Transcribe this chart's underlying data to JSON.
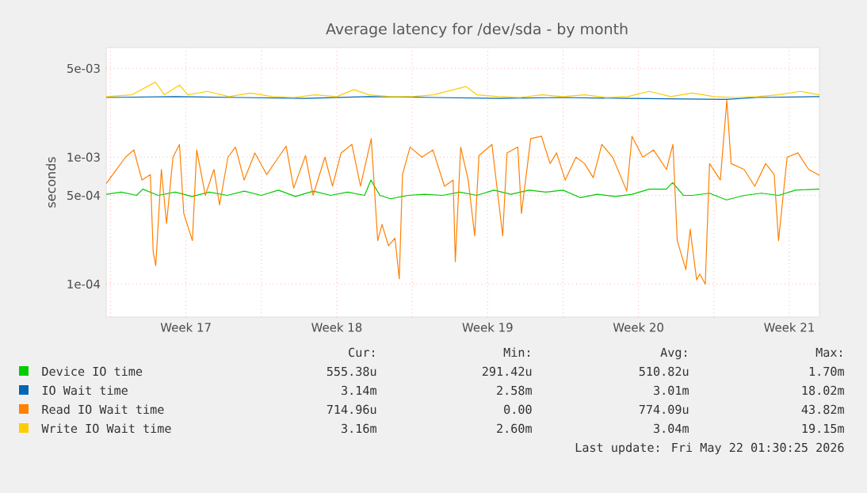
{
  "chart_data": {
    "type": "line",
    "title": "Average latency for /dev/sda - by month",
    "ylabel": "seconds",
    "log": true,
    "grid": true,
    "legend": "bottom",
    "xlim": [
      "2026-04-19T19:12",
      "2026-05-22T21:36"
    ],
    "ylim": [
      5.5e-05,
      0.0073
    ],
    "xticks": [
      {
        "value": "2026-04-20T00:00",
        "label": null
      },
      {
        "value": "2026-04-23T12:00",
        "label": "Week 17"
      },
      {
        "value": "2026-04-27T00:00",
        "label": null
      },
      {
        "value": "2026-04-30T12:00",
        "label": "Week 18"
      },
      {
        "value": "2026-05-04T00:00",
        "label": null
      },
      {
        "value": "2026-05-07T12:00",
        "label": "Week 19"
      },
      {
        "value": "2026-05-11T00:00",
        "label": null
      },
      {
        "value": "2026-05-14T12:00",
        "label": "Week 20"
      },
      {
        "value": "2026-05-18T00:00",
        "label": null
      },
      {
        "value": "2026-05-21T12:00",
        "label": "Week 21"
      }
    ],
    "yticks": [
      {
        "value": 0.0001,
        "label": "1e-04"
      },
      {
        "value": 0.0005,
        "label": "5e-04"
      },
      {
        "value": 0.001,
        "label": "1e-03"
      },
      {
        "value": 0.005,
        "label": "5e-03"
      }
    ],
    "series": [
      {
        "name": "Device IO time",
        "color": "#00cc00",
        "x": [
          "2026-04-19T19:12",
          "2026-04-20T12:00",
          "2026-04-21T05:00",
          "2026-04-21T12:00",
          "2026-04-22T05:00",
          "2026-04-23T00:00",
          "2026-04-23T19:00",
          "2026-04-24T14:00",
          "2026-04-25T10:00",
          "2026-04-26T05:00",
          "2026-04-27T00:00",
          "2026-04-27T19:00",
          "2026-04-28T14:00",
          "2026-04-29T10:00",
          "2026-04-30T05:00",
          "2026-05-01T00:00",
          "2026-05-01T19:00",
          "2026-05-02T02:00",
          "2026-05-02T12:00",
          "2026-05-03T00:00",
          "2026-05-03T19:00",
          "2026-05-04T14:00",
          "2026-05-05T10:00",
          "2026-05-06T05:00",
          "2026-05-07T00:00",
          "2026-05-07T19:00",
          "2026-05-08T14:00",
          "2026-05-09T10:00",
          "2026-05-10T05:00",
          "2026-05-11T00:00",
          "2026-05-11T19:00",
          "2026-05-12T14:00",
          "2026-05-13T10:00",
          "2026-05-14T05:00",
          "2026-05-15T00:00",
          "2026-05-15T19:00",
          "2026-05-16T02:00",
          "2026-05-16T14:00",
          "2026-05-17T00:00",
          "2026-05-17T19:00",
          "2026-05-18T14:00",
          "2026-05-19T10:00",
          "2026-05-20T05:00",
          "2026-05-21T00:00",
          "2026-05-21T19:00",
          "2026-05-22T21:36"
        ],
        "values": [
          0.00051,
          0.00053,
          0.0005,
          0.00056,
          0.0005,
          0.00053,
          0.00049,
          0.00053,
          0.0005,
          0.00054,
          0.0005,
          0.00055,
          0.00049,
          0.00054,
          0.0005,
          0.00053,
          0.0005,
          0.00066,
          0.0005,
          0.00047,
          0.0005,
          0.00051,
          0.0005,
          0.00053,
          0.0005,
          0.00055,
          0.00051,
          0.00055,
          0.00053,
          0.00055,
          0.00048,
          0.00051,
          0.00049,
          0.00051,
          0.00056,
          0.00056,
          0.00063,
          0.0005,
          0.0005,
          0.00052,
          0.00046,
          0.0005,
          0.00052,
          0.0005,
          0.00055,
          0.00056
        ]
      },
      {
        "name": "IO Wait time",
        "color": "#0066b3",
        "x": [
          "2026-04-19T19:12",
          "2026-04-23T00:00",
          "2026-04-26T00:00",
          "2026-04-29T00:00",
          "2026-05-02T00:00",
          "2026-05-05T00:00",
          "2026-05-08T00:00",
          "2026-05-11T00:00",
          "2026-05-14T00:00",
          "2026-05-18T14:00",
          "2026-05-20T00:00",
          "2026-05-22T21:36"
        ],
        "values": [
          0.00295,
          0.003,
          0.00295,
          0.0029,
          0.003,
          0.00295,
          0.0029,
          0.00295,
          0.0029,
          0.00285,
          0.00295,
          0.003
        ]
      },
      {
        "name": "Read IO Wait time",
        "color": "#ff8000",
        "x": [
          "2026-04-19T19:12",
          "2026-04-20T04:19",
          "2026-04-20T16:48",
          "2026-04-21T01:55",
          "2026-04-21T11:02",
          "2026-04-21T20:24",
          "2026-04-21T23:31",
          "2026-04-22T02:24",
          "2026-04-22T08:38",
          "2026-04-22T14:24",
          "2026-04-22T21:36",
          "2026-04-23T04:48",
          "2026-04-23T09:36",
          "2026-04-23T19:12",
          "2026-04-24T00:00",
          "2026-04-24T09:36",
          "2026-04-24T19:12",
          "2026-04-25T01:26",
          "2026-04-25T10:48",
          "2026-04-25T19:12",
          "2026-04-26T04:48",
          "2026-04-26T16:48",
          "2026-04-27T06:00",
          "2026-04-27T19:12",
          "2026-04-28T03:36",
          "2026-04-28T12:00",
          "2026-04-29T01:12",
          "2026-04-29T09:36",
          "2026-04-29T22:48",
          "2026-04-30T07:12",
          "2026-04-30T16:48",
          "2026-05-01T04:48",
          "2026-05-01T14:24",
          "2026-05-02T02:24",
          "2026-05-02T09:36",
          "2026-05-02T14:24",
          "2026-05-02T21:36",
          "2026-05-03T04:48",
          "2026-05-03T09:36",
          "2026-05-03T13:12",
          "2026-05-03T21:36",
          "2026-05-04T10:48",
          "2026-05-04T23:02",
          "2026-05-05T12:00",
          "2026-05-05T21:36",
          "2026-05-06T00:00",
          "2026-05-06T06:00",
          "2026-05-06T14:24",
          "2026-05-06T21:36",
          "2026-05-07T02:24",
          "2026-05-07T16:48",
          "2026-05-08T04:48",
          "2026-05-08T09:36",
          "2026-05-08T21:36",
          "2026-05-09T01:41",
          "2026-05-09T12:00",
          "2026-05-10T00:00",
          "2026-05-10T09:36",
          "2026-05-10T16:48",
          "2026-05-11T02:24",
          "2026-05-11T14:24",
          "2026-05-12T00:00",
          "2026-05-12T09:36",
          "2026-05-12T19:12",
          "2026-05-13T07:12",
          "2026-05-13T23:02",
          "2026-05-14T04:48",
          "2026-05-14T16:48",
          "2026-05-15T04:48",
          "2026-05-15T19:12",
          "2026-05-16T02:24",
          "2026-05-16T07:12",
          "2026-05-16T16:48",
          "2026-05-16T21:36",
          "2026-05-17T04:48",
          "2026-05-17T08:24",
          "2026-05-17T14:24",
          "2026-05-17T19:12",
          "2026-05-18T07:12",
          "2026-05-18T14:24",
          "2026-05-18T19:12",
          "2026-05-19T09:36",
          "2026-05-19T21:36",
          "2026-05-20T09:36",
          "2026-05-20T19:12",
          "2026-05-21T00:00",
          "2026-05-21T09:36",
          "2026-05-21T21:36",
          "2026-05-22T09:36",
          "2026-05-22T21:36"
        ],
        "values": [
          0.00062,
          0.00076,
          0.001,
          0.00114,
          0.00066,
          0.00073,
          0.00018,
          0.00014,
          0.0008,
          0.0003,
          0.001,
          0.00126,
          0.00036,
          0.00022,
          0.00114,
          0.0005,
          0.0008,
          0.00042,
          0.001,
          0.0012,
          0.00066,
          0.00108,
          0.00073,
          0.001,
          0.00122,
          0.00057,
          0.00103,
          0.0005,
          0.001,
          0.00059,
          0.00108,
          0.00126,
          0.00059,
          0.0014,
          0.00022,
          0.000295,
          0.0002,
          0.00023,
          0.00011,
          0.00073,
          0.0012,
          0.001,
          0.00114,
          0.00059,
          0.00066,
          0.00015,
          0.0012,
          0.00066,
          0.00024,
          0.00103,
          0.00126,
          0.00024,
          0.00108,
          0.0012,
          0.00036,
          0.0014,
          0.00146,
          0.00089,
          0.00108,
          0.00066,
          0.001,
          0.00089,
          0.00069,
          0.00126,
          0.001,
          0.00054,
          0.00146,
          0.001,
          0.00114,
          0.0008,
          0.00126,
          0.00022,
          0.00013,
          0.00027,
          0.000108,
          0.00012,
          0.0001,
          0.00089,
          0.00066,
          0.0028,
          0.00089,
          0.0008,
          0.00059,
          0.00089,
          0.00073,
          0.00022,
          0.001,
          0.00108,
          0.0008,
          0.00072
        ]
      },
      {
        "name": "Write IO Wait time",
        "color": "#ffcc00",
        "x": [
          "2026-04-19T19:12",
          "2026-04-21T00:00",
          "2026-04-22T02:00",
          "2026-04-22T12:00",
          "2026-04-23T05:00",
          "2026-04-23T14:00",
          "2026-04-24T12:00",
          "2026-04-25T12:00",
          "2026-04-26T12:00",
          "2026-04-27T12:00",
          "2026-04-28T12:00",
          "2026-04-29T12:00",
          "2026-04-30T12:00",
          "2026-05-01T07:00",
          "2026-05-02T00:00",
          "2026-05-03T00:00",
          "2026-05-04T00:00",
          "2026-05-05T00:00",
          "2026-05-06T12:00",
          "2026-05-07T00:00",
          "2026-05-08T00:00",
          "2026-05-09T00:00",
          "2026-05-10T00:00",
          "2026-05-11T00:00",
          "2026-05-12T00:00",
          "2026-05-13T00:00",
          "2026-05-14T00:00",
          "2026-05-15T00:00",
          "2026-05-16T00:00",
          "2026-05-17T00:00",
          "2026-05-18T00:00",
          "2026-05-19T00:00",
          "2026-05-20T00:00",
          "2026-05-21T00:00",
          "2026-05-22T00:00",
          "2026-05-22T21:36"
        ],
        "values": [
          0.003,
          0.0031,
          0.0039,
          0.0031,
          0.0037,
          0.0031,
          0.0033,
          0.003,
          0.0032,
          0.003,
          0.00295,
          0.0031,
          0.003,
          0.0034,
          0.0031,
          0.003,
          0.003,
          0.0031,
          0.0036,
          0.0031,
          0.003,
          0.00295,
          0.0031,
          0.003,
          0.0031,
          0.00295,
          0.003,
          0.0033,
          0.003,
          0.0032,
          0.003,
          0.00295,
          0.003,
          0.0031,
          0.0033,
          0.0031
        ]
      }
    ],
    "annotations": [
      "Cur:",
      "Min:",
      "Avg:",
      "Max:",
      "555.38u",
      "291.42u",
      "510.82u",
      "1.70m",
      "3.14m",
      "2.58m",
      "3.01m",
      "18.02m",
      "714.96u",
      "0.00",
      "774.09u",
      "43.82m",
      "3.16m",
      "2.60m",
      "3.04m",
      "19.15m",
      "Last update: Fri May 22 01:30:25 2026"
    ]
  }
}
